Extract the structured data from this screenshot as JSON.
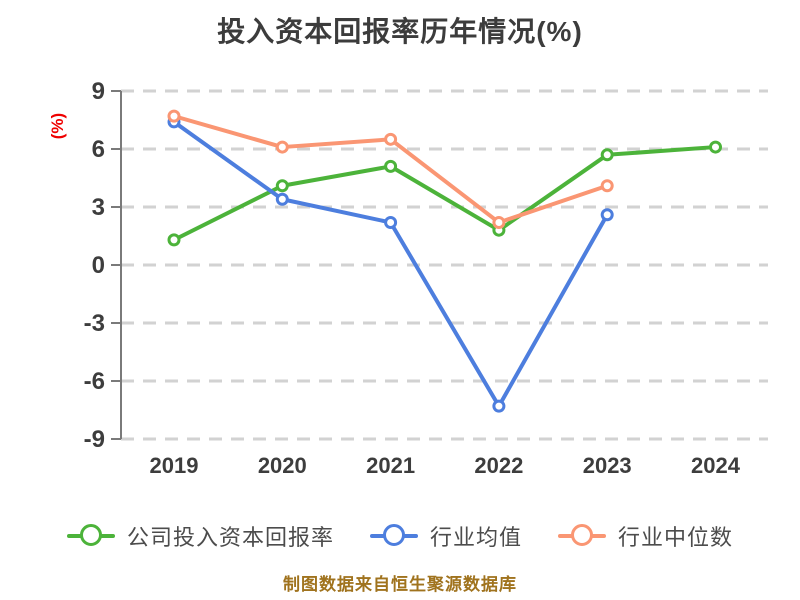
{
  "title": "投入资本回报率历年情况(%)",
  "footer": {
    "text": "制图数据来自恒生聚源数据库"
  },
  "colors": {
    "background": "#ffffff",
    "title_text": "#3c3c3c",
    "tick_text": "#3d3d3d",
    "legend_text": "#4c4c4c",
    "unit_label": "#ef0000",
    "footer_text": "#a0731e",
    "grid": "#d2d2d2",
    "axis": "#7a7a7a",
    "series_green": "#4cb33a",
    "series_blue": "#4d7ede",
    "series_orange": "#fa9673"
  },
  "chart_data": {
    "type": "line",
    "title": "投入资本回报率历年情况(%)",
    "xlabel": "",
    "ylabel": "(%)",
    "categories": [
      "2019",
      "2020",
      "2021",
      "2022",
      "2023",
      "2024"
    ],
    "series": [
      {
        "id": "company-roic",
        "name": "公司投入资本回报率",
        "color": "#4cb33a",
        "values": [
          1.3,
          4.1,
          5.1,
          1.8,
          5.7,
          6.1
        ]
      },
      {
        "id": "industry-mean",
        "name": "行业均值",
        "color": "#4d7ede",
        "values": [
          7.4,
          3.4,
          2.2,
          -7.3,
          2.6,
          null
        ]
      },
      {
        "id": "industry-median",
        "name": "行业中位数",
        "color": "#fa9673",
        "values": [
          7.7,
          6.1,
          6.5,
          2.2,
          4.1,
          null
        ]
      }
    ],
    "ylim": [
      -9,
      9
    ],
    "yticks": [
      9,
      6,
      3,
      0,
      -3,
      -6,
      -9
    ],
    "grid": "horizontal-dashed",
    "legend_position": "bottom",
    "marker": "hollow-circle"
  }
}
